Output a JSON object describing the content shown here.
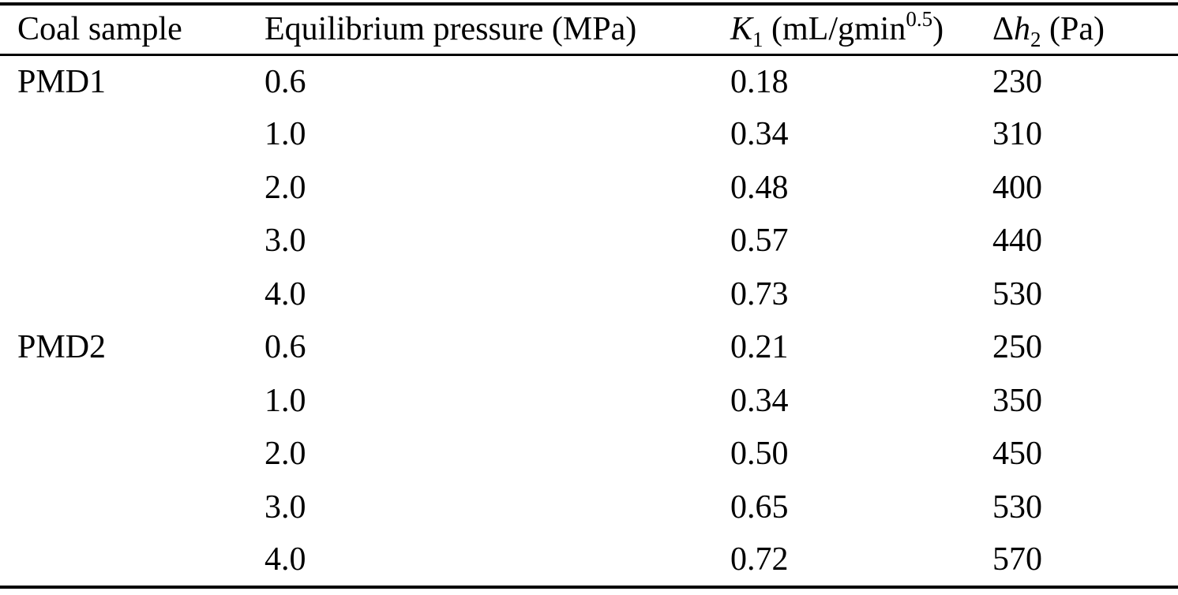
{
  "page": {
    "background_color": "#ffffff",
    "text_color": "#000000"
  },
  "table": {
    "headers": {
      "coal_sample": "Coal sample",
      "pressure": "Equilibrium pressure (MPa)",
      "k1": {
        "symbol": "K",
        "subscript": "1",
        "unit_prefix": " (mL/gmin",
        "superscript": "0.5",
        "unit_suffix": ")"
      },
      "dh2": {
        "delta": "Δ",
        "symbol": "h",
        "subscript": "2",
        "unit": " (Pa)"
      }
    },
    "rows": [
      {
        "sample": "PMD1",
        "pressure": "0.6",
        "k1": "0.18",
        "dh2": "230"
      },
      {
        "sample": "",
        "pressure": "1.0",
        "k1": "0.34",
        "dh2": "310"
      },
      {
        "sample": "",
        "pressure": "2.0",
        "k1": "0.48",
        "dh2": "400"
      },
      {
        "sample": "",
        "pressure": "3.0",
        "k1": "0.57",
        "dh2": "440"
      },
      {
        "sample": "",
        "pressure": "4.0",
        "k1": "0.73",
        "dh2": "530"
      },
      {
        "sample": "PMD2",
        "pressure": "0.6",
        "k1": "0.21",
        "dh2": "250"
      },
      {
        "sample": "",
        "pressure": "1.0",
        "k1": "0.34",
        "dh2": "350"
      },
      {
        "sample": "",
        "pressure": "2.0",
        "k1": "0.50",
        "dh2": "450"
      },
      {
        "sample": "",
        "pressure": "3.0",
        "k1": "0.65",
        "dh2": "530"
      },
      {
        "sample": "",
        "pressure": "4.0",
        "k1": "0.72",
        "dh2": "570"
      }
    ]
  }
}
